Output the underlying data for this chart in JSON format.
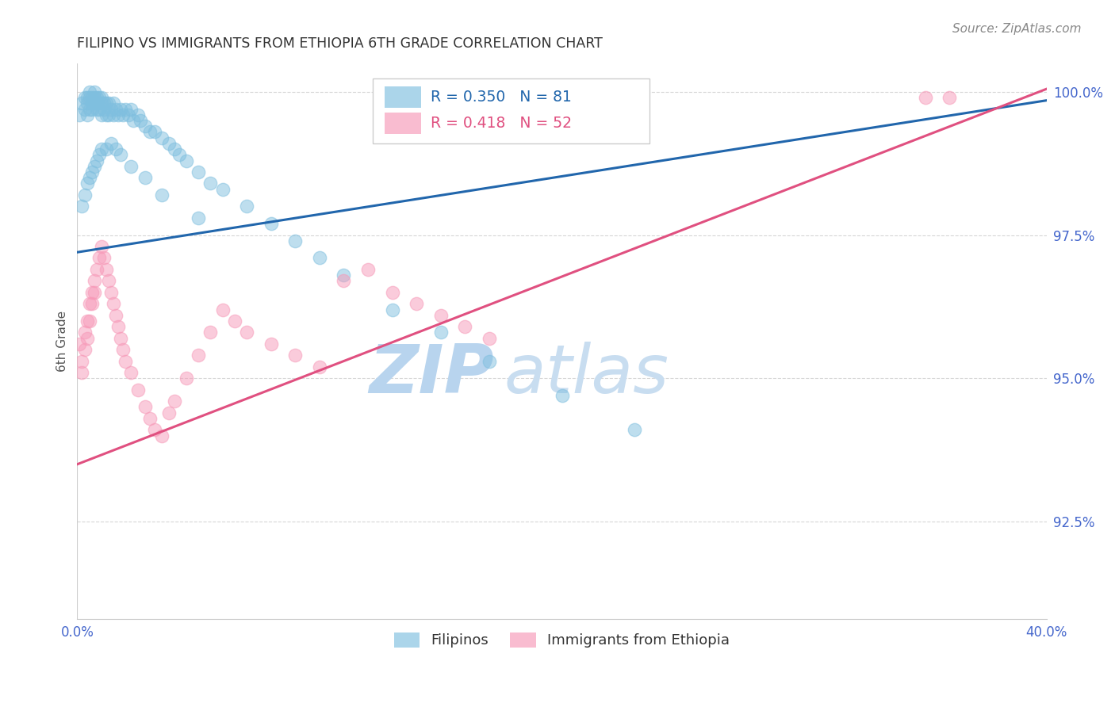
{
  "title": "FILIPINO VS IMMIGRANTS FROM ETHIOPIA 6TH GRADE CORRELATION CHART",
  "source": "Source: ZipAtlas.com",
  "ylabel": "6th Grade",
  "watermark_zip": "ZIP",
  "watermark_atlas": "atlas",
  "x_min": 0.0,
  "x_max": 0.4,
  "y_min": 0.908,
  "y_max": 1.005,
  "y_ticks": [
    0.925,
    0.95,
    0.975,
    1.0
  ],
  "y_ticklabels": [
    "92.5%",
    "95.0%",
    "97.5%",
    "100.0%"
  ],
  "x_ticks": [
    0.0,
    0.1,
    0.2,
    0.3,
    0.4
  ],
  "x_ticklabels": [
    "0.0%",
    "",
    "",
    "",
    "40.0%"
  ],
  "blue_color": "#7fbfdf",
  "pink_color": "#f799b8",
  "blue_line_color": "#2166ac",
  "pink_line_color": "#e05080",
  "axis_color": "#4466cc",
  "background_color": "#ffffff",
  "grid_color": "#cccccc",
  "title_color": "#333333",
  "watermark_color_zip": "#b8d4ee",
  "watermark_color_atlas": "#c8ddf0",
  "blue_line_x0": 0.0,
  "blue_line_y0": 0.972,
  "blue_line_x1": 0.4,
  "blue_line_y1": 0.9985,
  "pink_line_x0": 0.0,
  "pink_line_y0": 0.935,
  "pink_line_x1": 0.4,
  "pink_line_y1": 1.0005,
  "blue_scatter_x": [
    0.001,
    0.002,
    0.003,
    0.003,
    0.004,
    0.004,
    0.004,
    0.005,
    0.005,
    0.005,
    0.006,
    0.006,
    0.006,
    0.007,
    0.007,
    0.007,
    0.008,
    0.008,
    0.008,
    0.009,
    0.009,
    0.01,
    0.01,
    0.01,
    0.011,
    0.011,
    0.012,
    0.012,
    0.013,
    0.013,
    0.014,
    0.015,
    0.015,
    0.016,
    0.017,
    0.018,
    0.019,
    0.02,
    0.021,
    0.022,
    0.023,
    0.025,
    0.026,
    0.028,
    0.03,
    0.032,
    0.035,
    0.038,
    0.04,
    0.042,
    0.045,
    0.05,
    0.055,
    0.06,
    0.07,
    0.08,
    0.09,
    0.1,
    0.11,
    0.13,
    0.15,
    0.17,
    0.2,
    0.23,
    0.002,
    0.003,
    0.004,
    0.005,
    0.006,
    0.007,
    0.008,
    0.009,
    0.01,
    0.012,
    0.014,
    0.016,
    0.018,
    0.022,
    0.028,
    0.035,
    0.05
  ],
  "blue_scatter_y": [
    0.996,
    0.998,
    0.999,
    0.997,
    0.999,
    0.998,
    0.996,
    1.0,
    0.999,
    0.997,
    0.999,
    0.998,
    0.997,
    1.0,
    0.999,
    0.998,
    0.999,
    0.998,
    0.997,
    0.999,
    0.997,
    0.999,
    0.998,
    0.996,
    0.998,
    0.997,
    0.998,
    0.996,
    0.998,
    0.996,
    0.997,
    0.998,
    0.996,
    0.997,
    0.996,
    0.997,
    0.996,
    0.997,
    0.996,
    0.997,
    0.995,
    0.996,
    0.995,
    0.994,
    0.993,
    0.993,
    0.992,
    0.991,
    0.99,
    0.989,
    0.988,
    0.986,
    0.984,
    0.983,
    0.98,
    0.977,
    0.974,
    0.971,
    0.968,
    0.962,
    0.958,
    0.953,
    0.947,
    0.941,
    0.98,
    0.982,
    0.984,
    0.985,
    0.986,
    0.987,
    0.988,
    0.989,
    0.99,
    0.99,
    0.991,
    0.99,
    0.989,
    0.987,
    0.985,
    0.982,
    0.978
  ],
  "pink_scatter_x": [
    0.001,
    0.002,
    0.002,
    0.003,
    0.003,
    0.004,
    0.004,
    0.005,
    0.005,
    0.006,
    0.006,
    0.007,
    0.007,
    0.008,
    0.009,
    0.01,
    0.011,
    0.012,
    0.013,
    0.014,
    0.015,
    0.016,
    0.017,
    0.018,
    0.019,
    0.02,
    0.022,
    0.025,
    0.028,
    0.03,
    0.032,
    0.035,
    0.038,
    0.04,
    0.045,
    0.05,
    0.055,
    0.06,
    0.065,
    0.07,
    0.08,
    0.09,
    0.1,
    0.11,
    0.12,
    0.13,
    0.14,
    0.15,
    0.16,
    0.17,
    0.35,
    0.36
  ],
  "pink_scatter_y": [
    0.956,
    0.953,
    0.951,
    0.958,
    0.955,
    0.96,
    0.957,
    0.963,
    0.96,
    0.965,
    0.963,
    0.967,
    0.965,
    0.969,
    0.971,
    0.973,
    0.971,
    0.969,
    0.967,
    0.965,
    0.963,
    0.961,
    0.959,
    0.957,
    0.955,
    0.953,
    0.951,
    0.948,
    0.945,
    0.943,
    0.941,
    0.94,
    0.944,
    0.946,
    0.95,
    0.954,
    0.958,
    0.962,
    0.96,
    0.958,
    0.956,
    0.954,
    0.952,
    0.967,
    0.969,
    0.965,
    0.963,
    0.961,
    0.959,
    0.957,
    0.999,
    0.999
  ],
  "legend_R_blue": "R = 0.350",
  "legend_N_blue": "N = 81",
  "legend_R_pink": "R = 0.418",
  "legend_N_pink": "N = 52",
  "bottom_legend_blue": "Filipinos",
  "bottom_legend_pink": "Immigrants from Ethiopia"
}
